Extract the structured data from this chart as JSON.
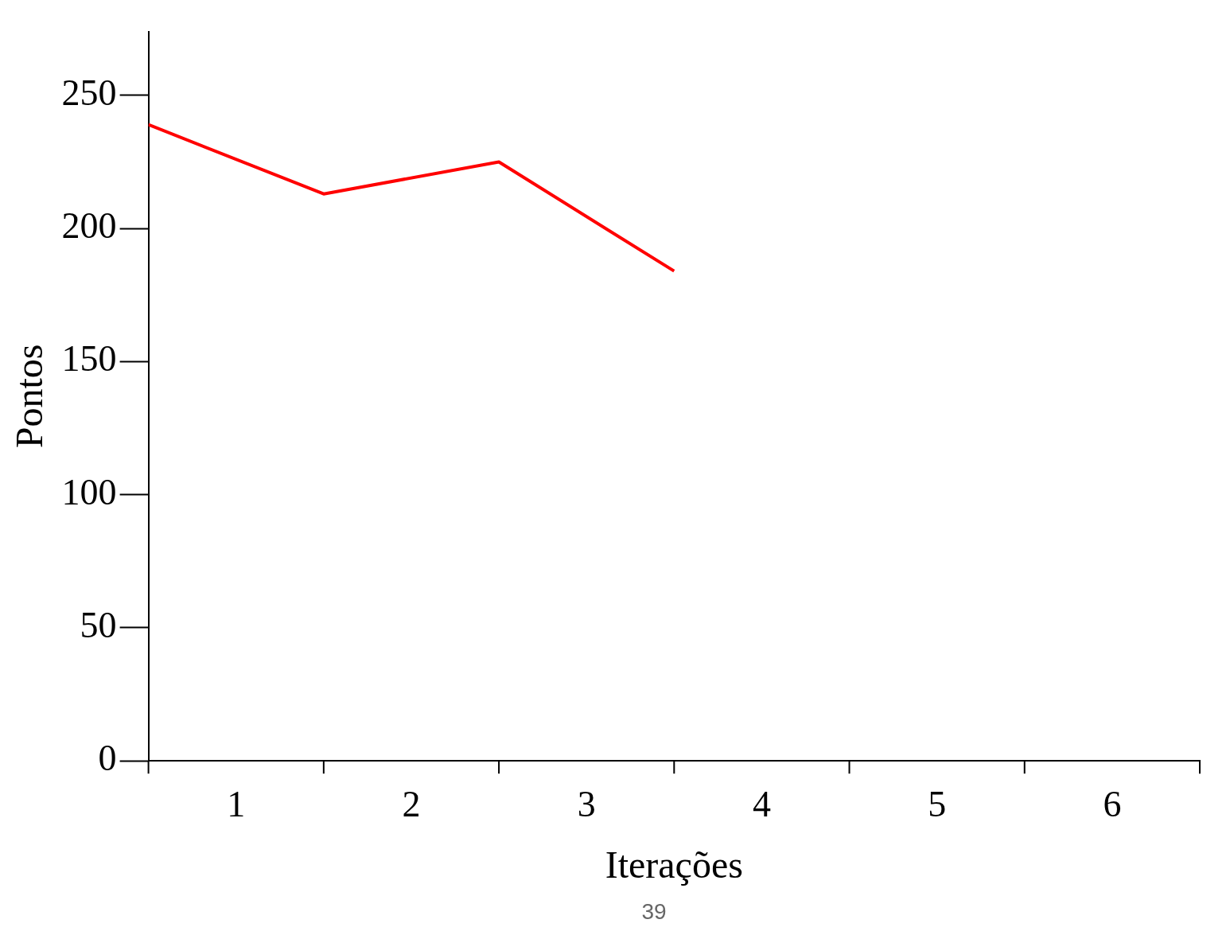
{
  "chart_data": {
    "type": "line",
    "xlabel": "Iterações",
    "ylabel": "Pontos",
    "x": [
      0,
      1,
      2,
      3
    ],
    "series": [
      {
        "color": "#ff0000",
        "values": [
          239,
          213,
          225,
          184
        ]
      }
    ],
    "xlim": [
      0,
      6
    ],
    "xticks": [
      {
        "value": 0,
        "label": null
      },
      {
        "value": 0.5,
        "label": "1"
      },
      {
        "value": 1,
        "label": null
      },
      {
        "value": 1.5,
        "label": "2"
      },
      {
        "value": 2,
        "label": null
      },
      {
        "value": 2.5,
        "label": "3"
      },
      {
        "value": 3,
        "label": null
      },
      {
        "value": 3.5,
        "label": "4"
      },
      {
        "value": 4,
        "label": null
      },
      {
        "value": 4.5,
        "label": "5"
      },
      {
        "value": 5,
        "label": null
      },
      {
        "value": 5.5,
        "label": "6"
      },
      {
        "value": 6,
        "label": null
      }
    ],
    "ylim": [
      0,
      274
    ],
    "yticks": [
      0,
      50,
      100,
      150,
      200,
      250
    ],
    "grid": false,
    "legend": false,
    "marker": "none",
    "line_style": "solid",
    "annotations": [
      "39"
    ]
  }
}
